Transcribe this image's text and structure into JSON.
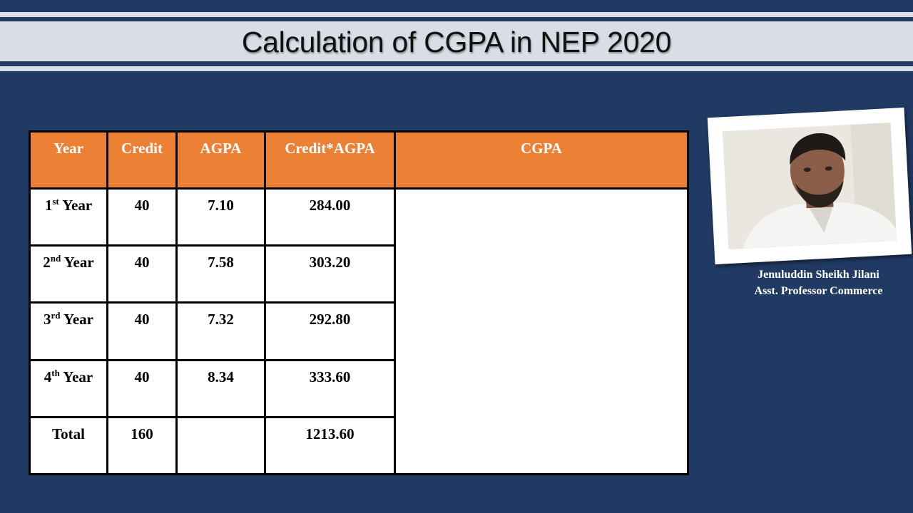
{
  "slide": {
    "title": "Calculation of CGPA in NEP 2020"
  },
  "table": {
    "headers": [
      "Year",
      "Credit",
      "AGPA",
      "Credit*AGPA",
      "CGPA"
    ],
    "rows": [
      {
        "year_num": "1",
        "year_sup": "st",
        "year_word": " Year",
        "credit": "40",
        "agpa": "7.10",
        "product": "284.00"
      },
      {
        "year_num": "2",
        "year_sup": "nd",
        "year_word": " Year",
        "credit": "40",
        "agpa": "7.58",
        "product": "303.20"
      },
      {
        "year_num": "3",
        "year_sup": "rd",
        "year_word": " Year",
        "credit": "40",
        "agpa": "7.32",
        "product": "292.80"
      },
      {
        "year_num": "4",
        "year_sup": "th",
        "year_word": " Year",
        "credit": "40",
        "agpa": "8.34",
        "product": "333.60"
      }
    ],
    "total": {
      "label": "Total",
      "credit": "160",
      "agpa": "",
      "product": "1213.60"
    },
    "cgpa_value": "",
    "header_color": "#ec8035"
  },
  "presenter": {
    "name": "Jenuluddin Sheikh Jilani",
    "title": "Asst. Professor Commerce"
  }
}
